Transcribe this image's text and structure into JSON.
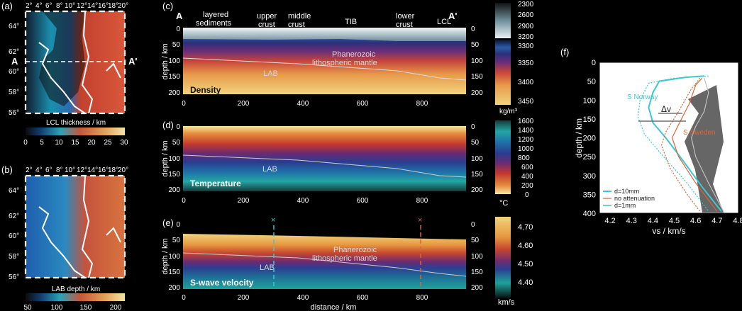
{
  "panels": {
    "a": {
      "letter": "(a)",
      "colorbar_label": "LCL thickness / km",
      "colorbar_ticks": [
        "0",
        "5",
        "10",
        "15",
        "20",
        "25",
        "30"
      ],
      "section_start": "A",
      "section_end": "A'"
    },
    "b": {
      "letter": "(b)",
      "colorbar_label": "LAB depth / km",
      "colorbar_ticks": [
        "50",
        "100",
        "150",
        "200"
      ]
    },
    "map_lon_ticks": [
      "2°",
      "4°",
      "6°",
      "8°",
      "10°",
      "12°",
      "14°",
      "16°",
      "18°",
      "20°"
    ],
    "map_lat_ticks": [
      "64°",
      "62°",
      "60°",
      "58°",
      "56°"
    ],
    "c": {
      "letter": "(c)",
      "end_left": "A",
      "end_right": "A'",
      "title": "Density",
      "labels": {
        "layered1": "layered",
        "layered2": "sediments",
        "upper1": "upper",
        "upper2": "crust",
        "middle1": "middle",
        "middle2": "crust",
        "tib": "TIB",
        "lower1": "lower",
        "lower2": "crust",
        "lcl": "LCL",
        "phan1": "Phanerozoic",
        "phan2": "lithospheric mantle",
        "lab": "LAB"
      },
      "colorbar_ticks": [
        "2300",
        "2600",
        "2900",
        "3200",
        "3300",
        "3350",
        "3400",
        "3450"
      ],
      "colorbar_unit": "kg/m³"
    },
    "d": {
      "letter": "(d)",
      "title": "Temperature",
      "lab": "LAB",
      "colorbar_ticks": [
        "1600",
        "1400",
        "1200",
        "1000",
        "800",
        "600",
        "400",
        "200",
        "0"
      ],
      "colorbar_unit": "°C"
    },
    "e": {
      "letter": "(e)",
      "title": "S-wave velocity",
      "lab": "LAB",
      "phan1": "Phanerozoic",
      "phan2": "lithospheric mantle",
      "marker": "×",
      "colorbar_ticks": [
        "4.70",
        "4.60",
        "4.50",
        "4.40"
      ],
      "colorbar_unit": "km/s"
    },
    "section_ylabel": "depth / km",
    "section_xlabel": "distance / km",
    "section_xticks": [
      "0",
      "200",
      "400",
      "600",
      "800"
    ],
    "section_yticks": [
      "0",
      "50",
      "100",
      "150",
      "200"
    ]
  },
  "chart_data": {
    "type": "line",
    "panel": "(f)",
    "xlabel": "vs / km/s",
    "ylabel": "depth / km",
    "xlim": [
      4.15,
      4.8
    ],
    "ylim": [
      400,
      0
    ],
    "xticks": [
      "4.2",
      "4.3",
      "4.4",
      "4.5",
      "4.6",
      "4.7",
      "4.8"
    ],
    "yticks": [
      "0",
      "50",
      "100",
      "150",
      "200",
      "250",
      "300",
      "350",
      "400"
    ],
    "annotations": {
      "s_norway": "S Norway",
      "s_sweden": "S Sweden",
      "delta_v": "Δv"
    },
    "legend": [
      "d=10mm",
      "no attenuation",
      "d=1mm"
    ],
    "series": [
      {
        "name": "S Norway d=10mm",
        "color": "#3cc8d0",
        "style": "solid",
        "points": [
          [
            4.64,
            36
          ],
          [
            4.55,
            40
          ],
          [
            4.43,
            50
          ],
          [
            4.4,
            80
          ],
          [
            4.38,
            120
          ],
          [
            4.4,
            160
          ],
          [
            4.46,
            200
          ],
          [
            4.54,
            260
          ],
          [
            4.63,
            330
          ],
          [
            4.72,
            395
          ]
        ]
      },
      {
        "name": "S Norway d=1mm",
        "color": "#3cc8d0",
        "style": "dotted",
        "points": [
          [
            4.66,
            36
          ],
          [
            4.5,
            42
          ],
          [
            4.38,
            55
          ],
          [
            4.34,
            100
          ],
          [
            4.33,
            145
          ],
          [
            4.36,
            190
          ],
          [
            4.45,
            250
          ],
          [
            4.56,
            320
          ],
          [
            4.66,
            395
          ]
        ]
      },
      {
        "name": "S Sweden d=10mm",
        "color": "#d9653a",
        "style": "solid",
        "points": [
          [
            4.63,
            42
          ],
          [
            4.6,
            60
          ],
          [
            4.57,
            110
          ],
          [
            4.52,
            165
          ],
          [
            4.49,
            200
          ],
          [
            4.52,
            250
          ],
          [
            4.6,
            320
          ],
          [
            4.7,
            395
          ]
        ]
      },
      {
        "name": "S Sweden d=1mm",
        "color": "#d9653a",
        "style": "dotted",
        "points": [
          [
            4.62,
            42
          ],
          [
            4.58,
            70
          ],
          [
            4.52,
            130
          ],
          [
            4.46,
            185
          ],
          [
            4.44,
            220
          ],
          [
            4.48,
            280
          ],
          [
            4.56,
            350
          ],
          [
            4.62,
            395
          ]
        ]
      },
      {
        "name": "S Sweden no attenuation",
        "color": "#c0c0c0",
        "style": "solid",
        "points": [
          [
            4.64,
            42
          ],
          [
            4.66,
            80
          ],
          [
            4.64,
            130
          ],
          [
            4.6,
            170
          ],
          [
            4.58,
            200
          ],
          [
            4.6,
            250
          ],
          [
            4.66,
            320
          ],
          [
            4.73,
            395
          ]
        ]
      }
    ]
  }
}
